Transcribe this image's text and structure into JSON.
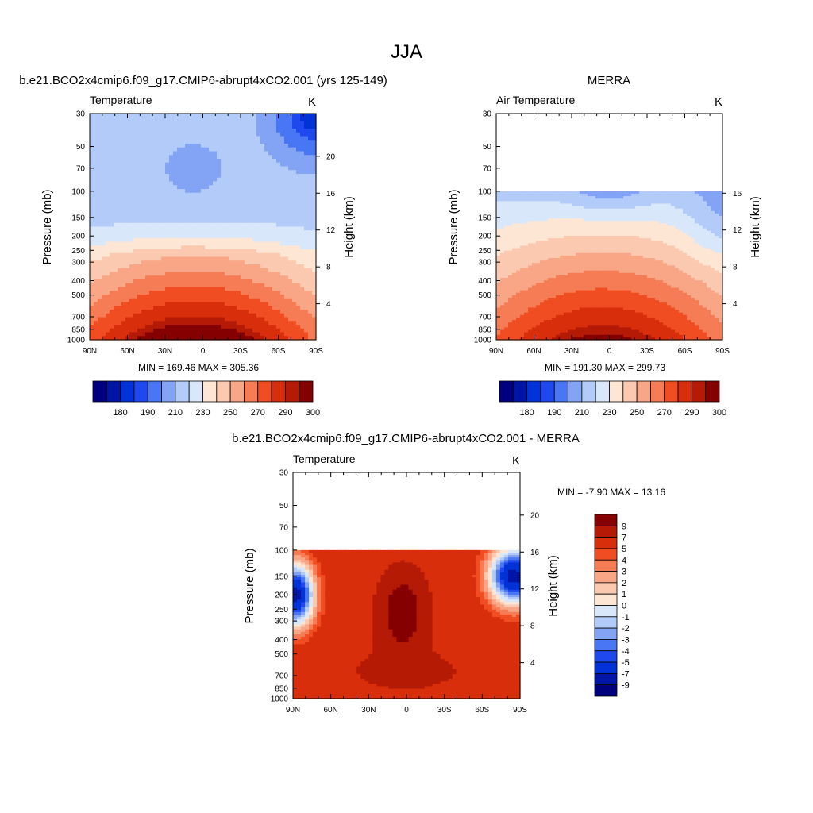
{
  "figure": {
    "title": "JJA"
  },
  "chart_data": [
    {
      "type": "heatmap",
      "title": "b.e21.BCO2x4cmip6.f09_g17.CMIP6-abrupt4xCO2.001 (yrs 125-149)",
      "subtitle_left": "Temperature",
      "units": "K",
      "ylabel": "Pressure (mb)",
      "ylabel_right": "Height (km)",
      "x_ticks": [
        "90N",
        "60N",
        "30N",
        "0",
        "30S",
        "60S",
        "90S"
      ],
      "y_ticks": [
        30,
        50,
        70,
        100,
        150,
        200,
        250,
        300,
        400,
        500,
        700,
        850,
        1000
      ],
      "height_ticks": [
        4,
        8,
        12,
        16,
        20
      ],
      "ylim": [
        1000,
        30
      ],
      "y_scale": "log",
      "stats": "MIN = 169.46  MAX = 305.36",
      "min": 169.46,
      "max": 305.36,
      "data_top_mb": 30,
      "levels": [
        175,
        180,
        185,
        190,
        200,
        210,
        220,
        230,
        240,
        250,
        260,
        270,
        280,
        290,
        295,
        300
      ],
      "colorbar_labels": [
        180,
        190,
        210,
        230,
        250,
        270,
        290,
        300
      ],
      "colorbar_orientation": "horizontal",
      "colors": [
        "#00007f",
        "#0015a5",
        "#0032d8",
        "#1f48ee",
        "#4876f5",
        "#83a4f5",
        "#b2cbf8",
        "#d9e7fb",
        "#fde6d3",
        "#fbc8b0",
        "#f8a686",
        "#f57c55",
        "#f04d22",
        "#d92e0c",
        "#b41a05",
        "#850000"
      ]
    },
    {
      "type": "heatmap",
      "title": "MERRA",
      "subtitle_left": "Air Temperature",
      "units": "K",
      "ylabel": "Pressure (mb)",
      "ylabel_right": "Height (km)",
      "x_ticks": [
        "90N",
        "60N",
        "30N",
        "0",
        "30S",
        "60S",
        "90S"
      ],
      "y_ticks": [
        30,
        50,
        70,
        100,
        150,
        200,
        250,
        300,
        400,
        500,
        700,
        850,
        1000
      ],
      "height_ticks": [
        4,
        8,
        12,
        16
      ],
      "ylim": [
        1000,
        30
      ],
      "y_scale": "log",
      "stats": "MIN = 191.30  MAX = 299.73",
      "min": 191.3,
      "max": 299.73,
      "data_top_mb": 100,
      "levels": [
        175,
        180,
        185,
        190,
        200,
        210,
        220,
        230,
        240,
        250,
        260,
        270,
        280,
        290,
        295,
        300
      ],
      "colorbar_labels": [
        180,
        190,
        210,
        230,
        250,
        270,
        290,
        300
      ],
      "colorbar_orientation": "horizontal",
      "colors": [
        "#00007f",
        "#0015a5",
        "#0032d8",
        "#1f48ee",
        "#4876f5",
        "#83a4f5",
        "#b2cbf8",
        "#d9e7fb",
        "#fde6d3",
        "#fbc8b0",
        "#f8a686",
        "#f57c55",
        "#f04d22",
        "#d92e0c",
        "#b41a05",
        "#850000"
      ]
    },
    {
      "type": "heatmap",
      "title": "b.e21.BCO2x4cmip6.f09_g17.CMIP6-abrupt4xCO2.001 - MERRA",
      "subtitle_left": "Temperature",
      "units": "K",
      "ylabel": "Pressure (mb)",
      "ylabel_right": "Height (km)",
      "x_ticks": [
        "90N",
        "60N",
        "30N",
        "0",
        "30S",
        "60S",
        "90S"
      ],
      "y_ticks": [
        30,
        50,
        70,
        100,
        150,
        200,
        250,
        300,
        400,
        500,
        700,
        850,
        1000
      ],
      "height_ticks": [
        4,
        8,
        12,
        16,
        20
      ],
      "ylim": [
        1000,
        30
      ],
      "y_scale": "log",
      "stats": "MIN =  -7.90  MAX =  13.16",
      "min": -7.9,
      "max": 13.16,
      "data_top_mb": 100,
      "levels": [
        -9,
        -7,
        -5,
        -4,
        -3,
        -2,
        -1,
        0,
        1,
        2,
        3,
        4,
        5,
        7,
        9
      ],
      "colorbar_labels": [
        "9",
        "7",
        "5",
        "4",
        "3",
        "2",
        "1",
        "0",
        "-1",
        "-2",
        "-3",
        "-4",
        "-5",
        "-7",
        "-9"
      ],
      "colorbar_orientation": "vertical",
      "colors": [
        "#00007f",
        "#0015a5",
        "#0032d8",
        "#1f48ee",
        "#4876f5",
        "#83a4f5",
        "#b2cbf8",
        "#d9e7fb",
        "#fde6d3",
        "#fbc8b0",
        "#f8a686",
        "#f57c55",
        "#f04d22",
        "#d92e0c",
        "#b41a05",
        "#850000"
      ]
    }
  ]
}
